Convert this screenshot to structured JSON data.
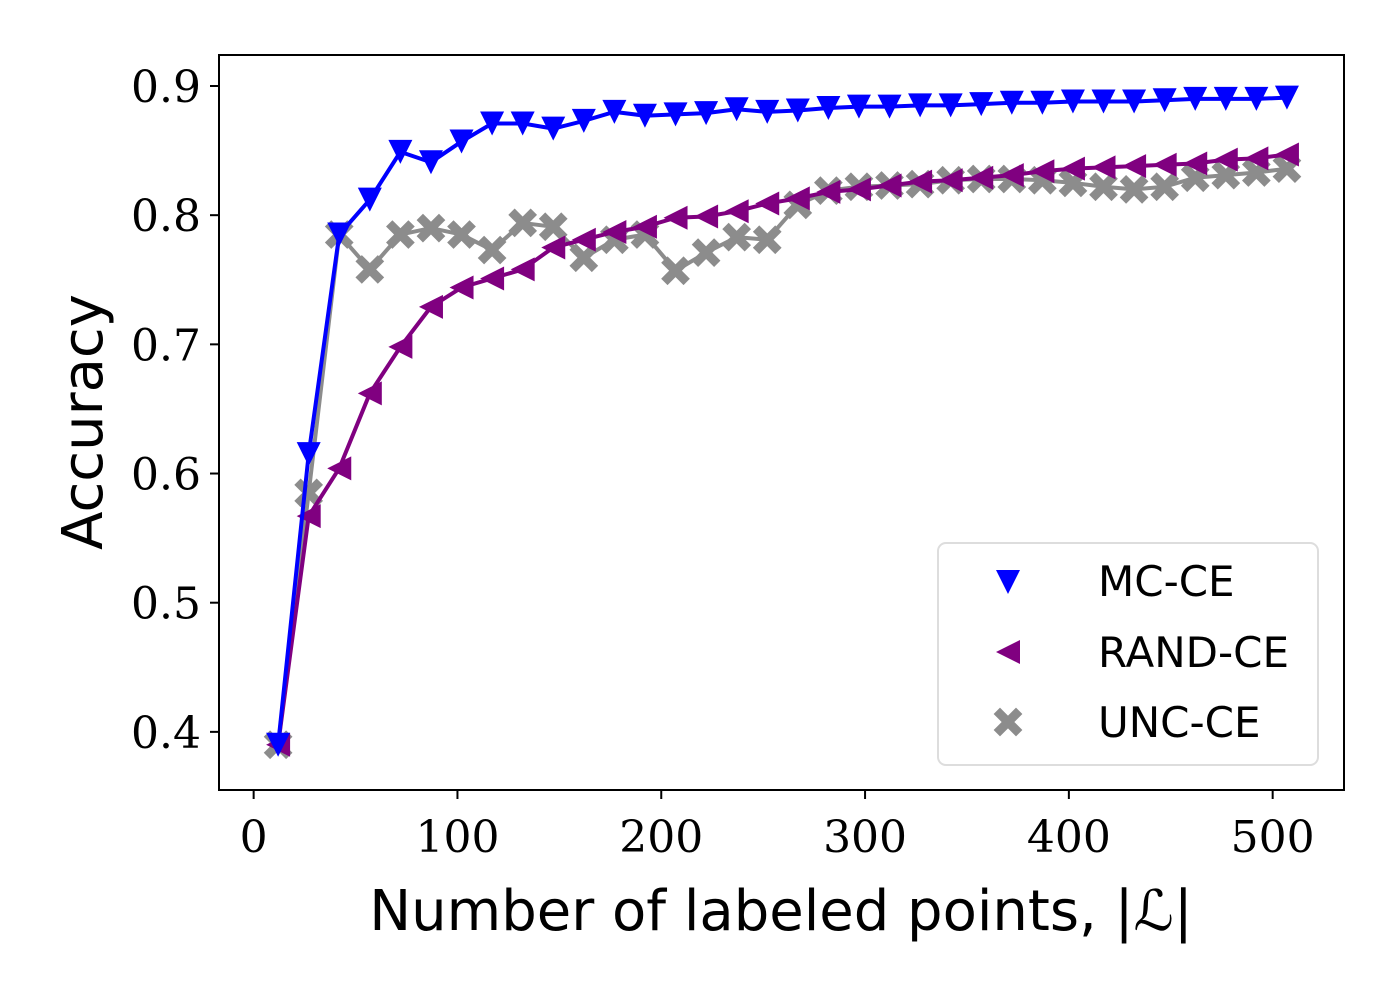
{
  "chart_data": {
    "type": "line",
    "xlabel": "Number of labeled points, |ℒ|",
    "ylabel": "Accuracy",
    "xlim": [
      -17,
      535
    ],
    "ylim": [
      0.355,
      0.924
    ],
    "xticks": [
      "0",
      "100",
      "200",
      "300",
      "400",
      "500"
    ],
    "yticks": [
      "0.4",
      "0.5",
      "0.6",
      "0.7",
      "0.8",
      "0.9"
    ],
    "grid": false,
    "legend_position": "lower-right",
    "x": [
      12,
      27,
      42,
      57,
      72,
      87,
      102,
      117,
      132,
      147,
      162,
      177,
      192,
      207,
      222,
      237,
      252,
      267,
      282,
      297,
      312,
      327,
      342,
      357,
      372,
      387,
      402,
      417,
      432,
      447,
      462,
      477,
      492,
      507
    ],
    "series": [
      {
        "name": "MC-CE",
        "color": "#0000ff",
        "marker": "triangle-down",
        "values": [
          0.39,
          0.615,
          0.785,
          0.812,
          0.849,
          0.841,
          0.857,
          0.871,
          0.871,
          0.867,
          0.873,
          0.88,
          0.877,
          0.878,
          0.879,
          0.882,
          0.88,
          0.881,
          0.883,
          0.884,
          0.884,
          0.885,
          0.885,
          0.886,
          0.887,
          0.887,
          0.888,
          0.888,
          0.888,
          0.889,
          0.89,
          0.89,
          0.89,
          0.891
        ]
      },
      {
        "name": "RAND-CE",
        "color": "#800080",
        "marker": "triangle-left",
        "values": [
          0.39,
          0.567,
          0.604,
          0.662,
          0.698,
          0.729,
          0.744,
          0.751,
          0.758,
          0.775,
          0.781,
          0.787,
          0.791,
          0.798,
          0.799,
          0.803,
          0.809,
          0.813,
          0.818,
          0.82,
          0.823,
          0.826,
          0.827,
          0.829,
          0.831,
          0.834,
          0.836,
          0.837,
          0.838,
          0.839,
          0.84,
          0.843,
          0.844,
          0.847
        ]
      },
      {
        "name": "UNC-CE",
        "color": "#8c8c8c",
        "marker": "x-filled",
        "values": [
          0.39,
          0.585,
          0.785,
          0.758,
          0.785,
          0.79,
          0.785,
          0.773,
          0.794,
          0.791,
          0.767,
          0.781,
          0.785,
          0.757,
          0.771,
          0.783,
          0.781,
          0.808,
          0.819,
          0.822,
          0.823,
          0.824,
          0.827,
          0.828,
          0.828,
          0.827,
          0.825,
          0.822,
          0.82,
          0.822,
          0.829,
          0.831,
          0.833,
          0.836
        ]
      }
    ]
  }
}
